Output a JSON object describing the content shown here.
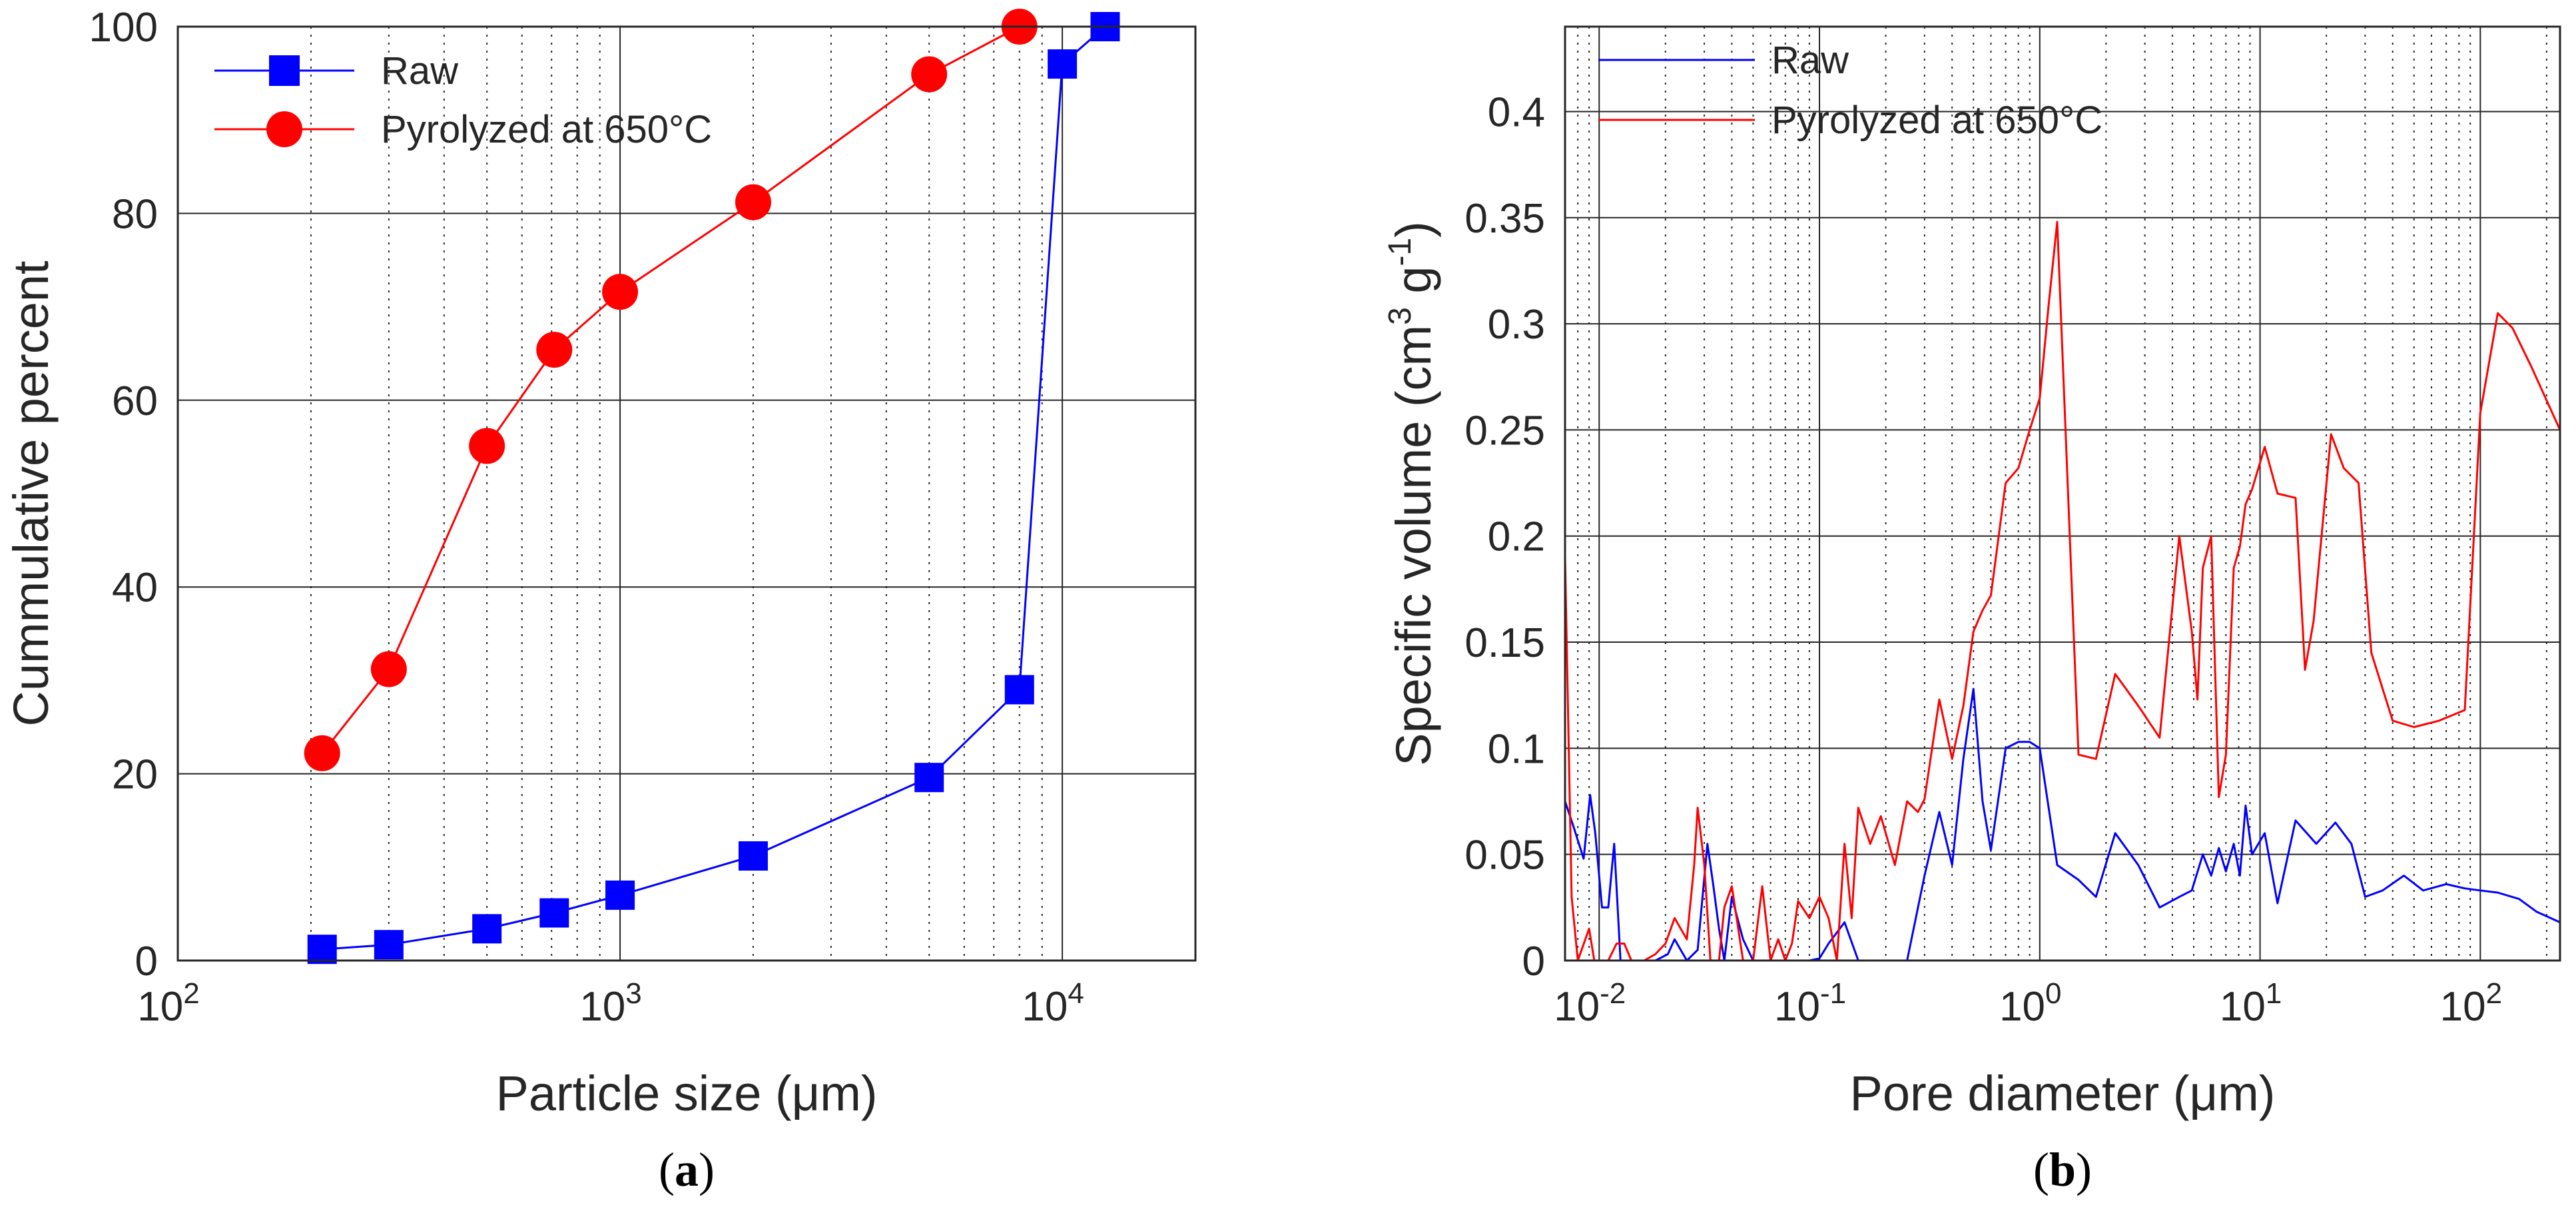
{
  "chart_data": [
    {
      "type": "line",
      "panel_caption": "a",
      "title": "",
      "xlabel": "Particle size (μm)",
      "ylabel": "Cummulative percent",
      "xscale": "log",
      "xlim": [
        100,
        20000
      ],
      "ylim": [
        0,
        100
      ],
      "xticks": [
        {
          "value": 100,
          "base": "10",
          "exp": "2"
        },
        {
          "value": 1000,
          "base": "10",
          "exp": "3"
        },
        {
          "value": 10000,
          "base": "10",
          "exp": "4"
        }
      ],
      "yticks": [
        0,
        20,
        40,
        60,
        80,
        100
      ],
      "grid": true,
      "legend_position": "top-left",
      "series": [
        {
          "name": "Raw",
          "color": "#0000ff",
          "marker": "square",
          "x": [
            212,
            300,
            500,
            710,
            1000,
            2000,
            5000,
            8000,
            10000,
            12500
          ],
          "y": [
            1.2,
            1.7,
            3.4,
            5.1,
            7.0,
            11.2,
            19.6,
            29.0,
            96.0,
            100.0
          ]
        },
        {
          "name": "Pyrolyzed at 650°C",
          "color": "#ff0000",
          "marker": "circle",
          "x": [
            212,
            300,
            500,
            710,
            1000,
            2000,
            5000,
            8000
          ],
          "y": [
            22.2,
            31.2,
            55.1,
            65.4,
            71.6,
            81.2,
            94.9,
            100.0
          ]
        }
      ]
    },
    {
      "type": "line",
      "panel_caption": "b",
      "title": "",
      "xlabel": "Pore diameter (μm)",
      "ylabel": {
        "prefix": "Specific volume (cm",
        "sup1": "3",
        "mid": " g",
        "sup2": "-1",
        "suffix": ")"
      },
      "xscale": "log",
      "xlim": [
        0.007,
        230
      ],
      "ylim": [
        0,
        0.44
      ],
      "xticks": [
        {
          "value": 0.01,
          "base": "10",
          "exp": "-2"
        },
        {
          "value": 0.1,
          "base": "10",
          "exp": "-1"
        },
        {
          "value": 1,
          "base": "10",
          "exp": "0"
        },
        {
          "value": 10,
          "base": "10",
          "exp": "1"
        },
        {
          "value": 100,
          "base": "10",
          "exp": "2"
        }
      ],
      "yticks": [
        {
          "value": 0,
          "label": "0"
        },
        {
          "value": 0.05,
          "label": "0.05"
        },
        {
          "value": 0.1,
          "label": "0.1"
        },
        {
          "value": 0.15,
          "label": "0.15"
        },
        {
          "value": 0.2,
          "label": "0.2"
        },
        {
          "value": 0.25,
          "label": "0.25"
        },
        {
          "value": 0.3,
          "label": "0.3"
        },
        {
          "value": 0.35,
          "label": "0.35"
        },
        {
          "value": 0.4,
          "label": "0.4"
        }
      ],
      "grid": true,
      "legend_position": "top-left",
      "series": [
        {
          "name": "Raw",
          "color": "#0000ff",
          "x": [
            0.007,
            0.0076,
            0.0085,
            0.0091,
            0.0096,
            0.0103,
            0.011,
            0.0117,
            0.0125,
            0.013,
            0.015,
            0.018,
            0.0205,
            0.022,
            0.025,
            0.028,
            0.031,
            0.033,
            0.035,
            0.037,
            0.04,
            0.045,
            0.05,
            0.06,
            0.07,
            0.08,
            0.09,
            0.1,
            0.11,
            0.13,
            0.15,
            0.2,
            0.25,
            0.3,
            0.35,
            0.4,
            0.45,
            0.5,
            0.55,
            0.6,
            0.7,
            0.8,
            0.9,
            1.0,
            1.2,
            1.5,
            1.8,
            2.2,
            2.8,
            3.5,
            4.3,
            4.9,
            5.5,
            6.0,
            6.5,
            7.0,
            7.6,
            8.1,
            8.6,
            9.2,
            10.5,
            12.0,
            14.5,
            18.0,
            22.0,
            26.0,
            30.0,
            36.0,
            45.0,
            55.0,
            70.0,
            85.0,
            100.0,
            120.0,
            150.0,
            180.0,
            230.0
          ],
          "y": [
            0.075,
            0.064,
            0.048,
            0.078,
            0.06,
            0.025,
            0.025,
            0.055,
            0,
            0,
            0,
            0,
            0.003,
            0.01,
            0,
            0.005,
            0.055,
            0.035,
            0.015,
            0,
            0.03,
            0.01,
            0,
            0,
            0,
            0,
            0,
            0.001,
            0.008,
            0.018,
            0,
            0,
            0,
            0.04,
            0.07,
            0.045,
            0.095,
            0.128,
            0.075,
            0.052,
            0.1,
            0.103,
            0.103,
            0.1,
            0.045,
            0.038,
            0.03,
            0.06,
            0.045,
            0.025,
            0.03,
            0.033,
            0.05,
            0.04,
            0.053,
            0.042,
            0.055,
            0.04,
            0.073,
            0.05,
            0.06,
            0.027,
            0.066,
            0.055,
            0.065,
            0.055,
            0.03,
            0.033,
            0.04,
            0.033,
            0.036,
            0.034,
            0.033,
            0.032,
            0.029,
            0.023,
            0.018
          ]
        },
        {
          "name": "Pyrolyzed at 650°C",
          "color": "#ff0000",
          "x": [
            0.007,
            0.0075,
            0.008,
            0.009,
            0.0095,
            0.01,
            0.011,
            0.012,
            0.013,
            0.014,
            0.016,
            0.018,
            0.02,
            0.022,
            0.025,
            0.027,
            0.028,
            0.03,
            0.032,
            0.035,
            0.037,
            0.04,
            0.045,
            0.05,
            0.055,
            0.06,
            0.065,
            0.07,
            0.075,
            0.08,
            0.09,
            0.1,
            0.11,
            0.12,
            0.13,
            0.14,
            0.15,
            0.17,
            0.19,
            0.22,
            0.25,
            0.28,
            0.3,
            0.35,
            0.4,
            0.45,
            0.5,
            0.55,
            0.6,
            0.7,
            0.8,
            0.9,
            1.0,
            1.1,
            1.2,
            1.5,
            1.8,
            2.2,
            2.8,
            3.5,
            4.3,
            4.9,
            5.2,
            5.5,
            6.0,
            6.5,
            7.0,
            7.6,
            8.1,
            8.6,
            9.2,
            10.5,
            12.0,
            14.5,
            16.0,
            17.5,
            21.0,
            24.0,
            28.0,
            32.0,
            40.0,
            50.0,
            65.0,
            85.0,
            100.0,
            120.0,
            140.0,
            170.0,
            230.0
          ],
          "y": [
            0.19,
            0.03,
            0,
            0.015,
            0,
            0,
            0,
            0.008,
            0.008,
            0,
            0,
            0.003,
            0.008,
            0.02,
            0.01,
            0.045,
            0.072,
            0.045,
            0,
            0,
            0.025,
            0.035,
            0,
            0,
            0.035,
            0,
            0.01,
            0,
            0.008,
            0.028,
            0.02,
            0.03,
            0.02,
            0,
            0.055,
            0.02,
            0.072,
            0.055,
            0.068,
            0.045,
            0.075,
            0.07,
            0.076,
            0.123,
            0.095,
            0.12,
            0.155,
            0.165,
            0.172,
            0.225,
            0.232,
            0.25,
            0.265,
            0.31,
            0.348,
            0.097,
            0.095,
            0.135,
            0.12,
            0.105,
            0.2,
            0.155,
            0.123,
            0.185,
            0.2,
            0.077,
            0.097,
            0.185,
            0.195,
            0.215,
            0.222,
            0.242,
            0.22,
            0.218,
            0.137,
            0.16,
            0.248,
            0.232,
            0.225,
            0.145,
            0.113,
            0.11,
            0.113,
            0.118,
            0.258,
            0.305,
            0.298,
            0.28,
            0.25
          ]
        }
      ]
    }
  ]
}
